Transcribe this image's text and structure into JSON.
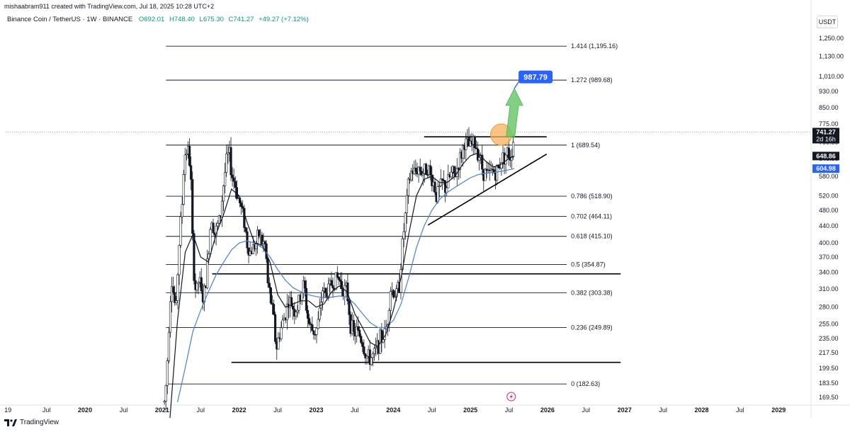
{
  "header": {
    "author_line": "mishaabram911 created with TradingView.com, Jul 18, 2025 10:28 UTC+2",
    "symbol": "Binance Coin / TetherUS · 1W · BINANCE",
    "open": "O692.01",
    "high": "H748.40",
    "low": "L675.30",
    "close": "C741.27",
    "change": "+49.27 (+7.12%)"
  },
  "currency": "USDT",
  "footer_brand": "TradingView",
  "colors": {
    "up": "#26a69a",
    "down": "#131722",
    "candle": "#131722",
    "ma_fast": "#131722",
    "ma_slow": "#4a7fd4",
    "target_label": "#2962ff",
    "arrow": "#6cc96c",
    "circle": "#f7b25c",
    "fib_line": "#131722",
    "last_price_bg": "#131722"
  },
  "chart_data": {
    "type": "candlestick",
    "symbol": "BNBUSDT",
    "timeframe": "1W",
    "y_scale": "log",
    "ylim": [
      165,
      1320
    ],
    "x_range": [
      "2019-01-01",
      "2029-06-01"
    ],
    "price_ticks": [
      1250,
      1130,
      1010,
      930,
      850,
      775,
      700,
      640,
      580,
      520,
      480,
      440,
      400,
      370,
      340,
      310,
      280,
      255,
      235,
      217.5,
      199.5,
      183.5,
      169.5
    ],
    "price_tick_labels": [
      "1,250.00",
      "1,130.00",
      "1,010.00",
      "930.00",
      "850.00",
      "775.00",
      "700.00",
      "640.00",
      "580.00",
      "520.00",
      "480.00",
      "440.00",
      "400.00",
      "370.00",
      "340.00",
      "310.00",
      "280.00",
      "255.00",
      "235.00",
      "217.50",
      "199.50",
      "183.50",
      "169.50"
    ],
    "time_ticks": [
      {
        "label": "19",
        "x": "2019.0",
        "year": false
      },
      {
        "label": "Jul",
        "x": "2019.5",
        "year": false
      },
      {
        "label": "2020",
        "x": "2020.0",
        "year": true
      },
      {
        "label": "Jul",
        "x": "2020.5",
        "year": false
      },
      {
        "label": "2021",
        "x": "2021.0",
        "year": true
      },
      {
        "label": "Jul",
        "x": "2021.5",
        "year": false
      },
      {
        "label": "2022",
        "x": "2022.0",
        "year": true
      },
      {
        "label": "Jul",
        "x": "2022.5",
        "year": false
      },
      {
        "label": "2023",
        "x": "2023.0",
        "year": true
      },
      {
        "label": "Jul",
        "x": "2023.5",
        "year": false
      },
      {
        "label": "2024",
        "x": "2024.0",
        "year": true
      },
      {
        "label": "Jul",
        "x": "2024.5",
        "year": false
      },
      {
        "label": "2025",
        "x": "2025.0",
        "year": true
      },
      {
        "label": "Jul",
        "x": "2025.5",
        "year": false
      },
      {
        "label": "2026",
        "x": "2026.0",
        "year": true
      },
      {
        "label": "Jul",
        "x": "2026.5",
        "year": false
      },
      {
        "label": "2027",
        "x": "2027.0",
        "year": true
      },
      {
        "label": "Jul",
        "x": "2027.5",
        "year": false
      },
      {
        "label": "2028",
        "x": "2028.0",
        "year": true
      },
      {
        "label": "Jul",
        "x": "2028.5",
        "year": false
      },
      {
        "label": "2029",
        "x": "2029.0",
        "year": true
      }
    ],
    "price_path": [
      [
        "2021.03",
        165
      ],
      [
        "2021.06",
        190
      ],
      [
        "2021.09",
        260
      ],
      [
        "2021.12",
        330
      ],
      [
        "2021.18",
        270
      ],
      [
        "2021.22",
        395
      ],
      [
        "2021.26",
        500
      ],
      [
        "2021.29",
        650
      ],
      [
        "2021.33",
        680
      ],
      [
        "2021.37",
        600
      ],
      [
        "2021.40",
        360
      ],
      [
        "2021.44",
        300
      ],
      [
        "2021.48",
        330
      ],
      [
        "2021.52",
        290
      ],
      [
        "2021.56",
        310
      ],
      [
        "2021.60",
        380
      ],
      [
        "2021.64",
        470
      ],
      [
        "2021.68",
        420
      ],
      [
        "2021.72",
        440
      ],
      [
        "2021.76",
        470
      ],
      [
        "2021.80",
        560
      ],
      [
        "2021.84",
        640
      ],
      [
        "2021.87",
        660
      ],
      [
        "2021.90",
        590
      ],
      [
        "2021.94",
        560
      ],
      [
        "2021.98",
        520
      ],
      [
        "2022.02",
        490
      ],
      [
        "2022.06",
        460
      ],
      [
        "2022.10",
        400
      ],
      [
        "2022.14",
        380
      ],
      [
        "2022.18",
        390
      ],
      [
        "2022.22",
        400
      ],
      [
        "2022.26",
        420
      ],
      [
        "2022.30",
        400
      ],
      [
        "2022.34",
        395
      ],
      [
        "2022.37",
        320
      ],
      [
        "2022.41",
        290
      ],
      [
        "2022.45",
        260
      ],
      [
        "2022.48",
        220
      ],
      [
        "2022.52",
        240
      ],
      [
        "2022.56",
        255
      ],
      [
        "2022.60",
        270
      ],
      [
        "2022.64",
        290
      ],
      [
        "2022.68",
        285
      ],
      [
        "2022.72",
        275
      ],
      [
        "2022.76",
        280
      ],
      [
        "2022.80",
        300
      ],
      [
        "2022.84",
        320
      ],
      [
        "2022.88",
        270
      ],
      [
        "2022.92",
        250
      ],
      [
        "2022.96",
        245
      ],
      [
        "2023.00",
        245
      ],
      [
        "2023.04",
        265
      ],
      [
        "2023.08",
        310
      ],
      [
        "2023.12",
        300
      ],
      [
        "2023.16",
        310
      ],
      [
        "2023.20",
        320
      ],
      [
        "2023.24",
        325
      ],
      [
        "2023.28",
        330
      ],
      [
        "2023.32",
        320
      ],
      [
        "2023.36",
        310
      ],
      [
        "2023.40",
        305
      ],
      [
        "2023.44",
        260
      ],
      [
        "2023.48",
        240
      ],
      [
        "2023.52",
        245
      ],
      [
        "2023.56",
        240
      ],
      [
        "2023.60",
        230
      ],
      [
        "2023.64",
        215
      ],
      [
        "2023.68",
        210
      ],
      [
        "2023.72",
        212
      ],
      [
        "2023.76",
        215
      ],
      [
        "2023.80",
        228
      ],
      [
        "2023.84",
        235
      ],
      [
        "2023.88",
        240
      ],
      [
        "2023.92",
        255
      ],
      [
        "2023.96",
        310
      ],
      [
        "2024.00",
        305
      ],
      [
        "2024.04",
        300
      ],
      [
        "2024.08",
        320
      ],
      [
        "2024.12",
        400
      ],
      [
        "2024.16",
        470
      ],
      [
        "2024.20",
        560
      ],
      [
        "2024.24",
        600
      ],
      [
        "2024.28",
        590
      ],
      [
        "2024.32",
        610
      ],
      [
        "2024.36",
        600
      ],
      [
        "2024.40",
        590
      ],
      [
        "2024.44",
        620
      ],
      [
        "2024.48",
        580
      ],
      [
        "2024.52",
        560
      ],
      [
        "2024.56",
        520
      ],
      [
        "2024.60",
        540
      ],
      [
        "2024.64",
        560
      ],
      [
        "2024.68",
        540
      ],
      [
        "2024.72",
        570
      ],
      [
        "2024.76",
        590
      ],
      [
        "2024.80",
        580
      ],
      [
        "2024.84",
        620
      ],
      [
        "2024.88",
        650
      ],
      [
        "2024.92",
        700
      ],
      [
        "2024.96",
        690
      ],
      [
        "2025.00",
        680
      ],
      [
        "2025.04",
        700
      ],
      [
        "2025.08",
        680
      ],
      [
        "2025.12",
        650
      ],
      [
        "2025.16",
        600
      ],
      [
        "2025.20",
        590
      ],
      [
        "2025.24",
        580
      ],
      [
        "2025.28",
        600
      ],
      [
        "2025.32",
        590
      ],
      [
        "2025.36",
        600
      ],
      [
        "2025.40",
        640
      ],
      [
        "2025.44",
        650
      ],
      [
        "2025.48",
        660
      ],
      [
        "2025.52",
        650
      ],
      [
        "2025.55",
        692
      ],
      [
        "2025.57",
        741.27
      ]
    ],
    "ma_fast": [
      [
        "2021.10",
        150
      ],
      [
        "2021.20",
        260
      ],
      [
        "2021.30",
        380
      ],
      [
        "2021.40",
        420
      ],
      [
        "2021.50",
        370
      ],
      [
        "2021.60",
        360
      ],
      [
        "2021.70",
        420
      ],
      [
        "2021.80",
        470
      ],
      [
        "2021.90",
        540
      ],
      [
        "2022.00",
        520
      ],
      [
        "2022.10",
        450
      ],
      [
        "2022.20",
        400
      ],
      [
        "2022.30",
        395
      ],
      [
        "2022.40",
        360
      ],
      [
        "2022.50",
        300
      ],
      [
        "2022.60",
        280
      ],
      [
        "2022.70",
        285
      ],
      [
        "2022.80",
        290
      ],
      [
        "2022.90",
        290
      ],
      [
        "2023.00",
        280
      ],
      [
        "2023.10",
        285
      ],
      [
        "2023.20",
        305
      ],
      [
        "2023.30",
        315
      ],
      [
        "2023.40",
        305
      ],
      [
        "2023.50",
        270
      ],
      [
        "2023.60",
        250
      ],
      [
        "2023.70",
        230
      ],
      [
        "2023.80",
        225
      ],
      [
        "2023.90",
        240
      ],
      [
        "2024.00",
        275
      ],
      [
        "2024.10",
        330
      ],
      [
        "2024.20",
        420
      ],
      [
        "2024.30",
        520
      ],
      [
        "2024.40",
        570
      ],
      [
        "2024.50",
        580
      ],
      [
        "2024.60",
        560
      ],
      [
        "2024.70",
        560
      ],
      [
        "2024.80",
        580
      ],
      [
        "2024.90",
        620
      ],
      [
        "2025.00",
        650
      ],
      [
        "2025.10",
        660
      ],
      [
        "2025.20",
        630
      ],
      [
        "2025.30",
        610
      ],
      [
        "2025.40",
        620
      ],
      [
        "2025.50",
        640
      ],
      [
        "2025.57",
        648.86
      ]
    ],
    "ma_slow": [
      [
        "2021.20",
        165
      ],
      [
        "2021.30",
        200
      ],
      [
        "2021.40",
        245
      ],
      [
        "2021.50",
        275
      ],
      [
        "2021.60",
        305
      ],
      [
        "2021.70",
        335
      ],
      [
        "2021.80",
        360
      ],
      [
        "2021.90",
        385
      ],
      [
        "2022.00",
        400
      ],
      [
        "2022.10",
        405
      ],
      [
        "2022.20",
        400
      ],
      [
        "2022.30",
        390
      ],
      [
        "2022.40",
        370
      ],
      [
        "2022.50",
        345
      ],
      [
        "2022.60",
        325
      ],
      [
        "2022.70",
        312
      ],
      [
        "2022.80",
        305
      ],
      [
        "2022.90",
        300
      ],
      [
        "2023.00",
        297
      ],
      [
        "2023.10",
        295
      ],
      [
        "2023.20",
        296
      ],
      [
        "2023.30",
        298
      ],
      [
        "2023.40",
        296
      ],
      [
        "2023.50",
        285
      ],
      [
        "2023.60",
        270
      ],
      [
        "2023.70",
        257
      ],
      [
        "2023.80",
        250
      ],
      [
        "2023.90",
        250
      ],
      [
        "2024.00",
        260
      ],
      [
        "2024.10",
        285
      ],
      [
        "2024.20",
        330
      ],
      [
        "2024.30",
        390
      ],
      [
        "2024.40",
        440
      ],
      [
        "2024.50",
        480
      ],
      [
        "2024.60",
        510
      ],
      [
        "2024.70",
        530
      ],
      [
        "2024.80",
        545
      ],
      [
        "2024.90",
        560
      ],
      [
        "2025.00",
        575
      ],
      [
        "2025.10",
        585
      ],
      [
        "2025.20",
        590
      ],
      [
        "2025.30",
        592
      ],
      [
        "2025.40",
        596
      ],
      [
        "2025.50",
        601
      ],
      [
        "2025.57",
        604.98
      ]
    ],
    "fib_levels": [
      {
        "ratio": "1.414",
        "price": 1195.16,
        "label": "1.414 (1,195.16)"
      },
      {
        "ratio": "1.272",
        "price": 989.68,
        "label": "1.272 (989.68)"
      },
      {
        "ratio": "1",
        "price": 689.54,
        "label": "1 (689.54)"
      },
      {
        "ratio": "0.786",
        "price": 518.9,
        "label": "0.786 (518.90)"
      },
      {
        "ratio": "0.702",
        "price": 464.11,
        "label": "0.702 (464.11)"
      },
      {
        "ratio": "0.618",
        "price": 415.1,
        "label": "0.618 (415.10)"
      },
      {
        "ratio": "0.5",
        "price": 354.87,
        "label": "0.5 (354.87)"
      },
      {
        "ratio": "0.382",
        "price": 303.38,
        "label": "0.382 (303.38)"
      },
      {
        "ratio": "0.236",
        "price": 249.89,
        "label": "0.236 (249.89)"
      },
      {
        "ratio": "0",
        "price": 182.63,
        "label": "0 (182.63)"
      }
    ],
    "fib_x_range": [
      "2021.05",
      "2026.25"
    ],
    "horizontal_lines": [
      {
        "name": "resistance",
        "price": 722,
        "x0": "2024.40",
        "x1": "2025.99"
      },
      {
        "name": "mid-support",
        "price": 337,
        "x0": "2021.65",
        "x1": "2026.95"
      },
      {
        "name": "bottom-support",
        "price": 206,
        "x0": "2021.90",
        "x1": "2026.95"
      }
    ],
    "trendline": {
      "from": [
        "2024.45",
        442
      ],
      "to": [
        "2025.99",
        656
      ]
    },
    "circle": {
      "x": "2025.40",
      "price": 731
    },
    "arrow": {
      "from": [
        "2025.52",
        722
      ],
      "to": [
        "2025.57",
        945
      ]
    },
    "target_label": {
      "text": "987.79",
      "price": 987.79,
      "x": "2025.57"
    },
    "last_price": {
      "label": "741.27",
      "countdown": "2d 16h",
      "price": 741.27
    },
    "ma_fast_label": {
      "label": "648.86",
      "price": 648.86
    },
    "ma_slow_label": {
      "label": "604.98",
      "price": 604.98
    }
  }
}
